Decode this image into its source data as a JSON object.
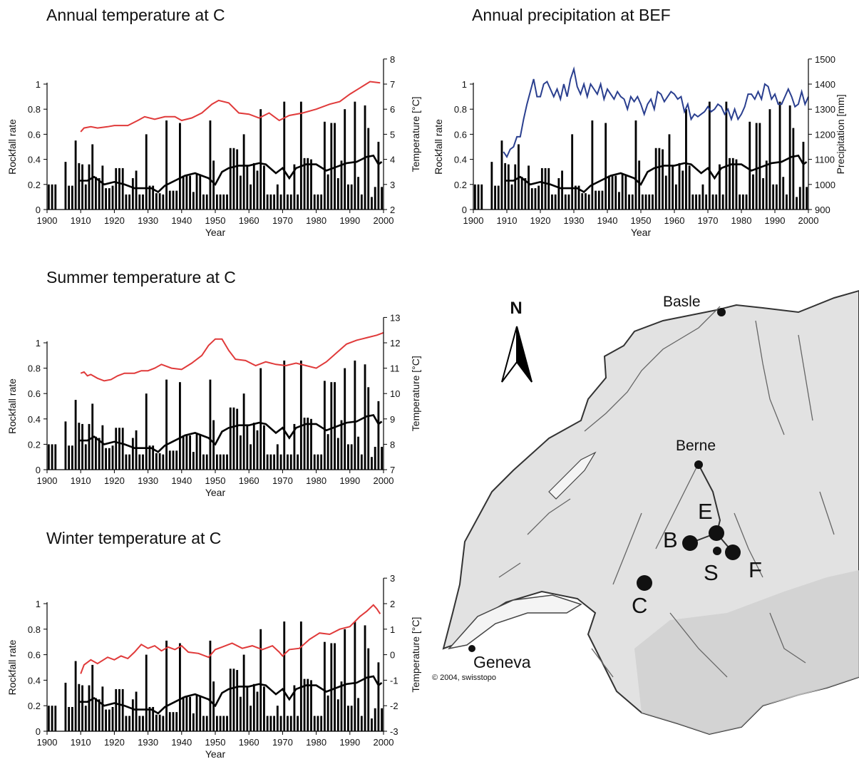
{
  "colors": {
    "bars": "#000000",
    "rockfall_smooth": "#000000",
    "temperature_line": "#e03a3a",
    "precipitation_line": "#2a3f8f",
    "map_land": "#e2e2e2",
    "map_rivers": "#6a6a6a"
  },
  "rockfall": {
    "years": [
      1900,
      1901,
      1902,
      1903,
      1904,
      1905,
      1906,
      1907,
      1908,
      1909,
      1910,
      1911,
      1912,
      1913,
      1914,
      1915,
      1916,
      1917,
      1918,
      1919,
      1920,
      1921,
      1922,
      1923,
      1924,
      1925,
      1926,
      1927,
      1928,
      1929,
      1930,
      1931,
      1932,
      1933,
      1934,
      1935,
      1936,
      1937,
      1938,
      1939,
      1940,
      1941,
      1942,
      1943,
      1944,
      1945,
      1946,
      1947,
      1948,
      1949,
      1950,
      1951,
      1952,
      1953,
      1954,
      1955,
      1956,
      1957,
      1958,
      1959,
      1960,
      1961,
      1962,
      1963,
      1964,
      1965,
      1966,
      1967,
      1968,
      1969,
      1970,
      1971,
      1972,
      1973,
      1974,
      1975,
      1976,
      1977,
      1978,
      1979,
      1980,
      1981,
      1982,
      1983,
      1984,
      1985,
      1986,
      1987,
      1988,
      1989,
      1990,
      1991,
      1992,
      1993,
      1994,
      1995,
      1996,
      1997,
      1998,
      1999
    ],
    "rates": [
      0.2,
      0.2,
      0.2,
      0,
      0,
      0.38,
      0.19,
      0.19,
      0.55,
      0.37,
      0.36,
      0.2,
      0.36,
      0.52,
      0.26,
      0.25,
      0.35,
      0.17,
      0.17,
      0.19,
      0.33,
      0.33,
      0.33,
      0.12,
      0.12,
      0.25,
      0.31,
      0.12,
      0.12,
      0.6,
      0.19,
      0.19,
      0.13,
      0.13,
      0.12,
      0.71,
      0.15,
      0.15,
      0.15,
      0.69,
      0.27,
      0.27,
      0.27,
      0.14,
      0.28,
      0.28,
      0.12,
      0.12,
      0.71,
      0.39,
      0.12,
      0.12,
      0.12,
      0.12,
      0.49,
      0.49,
      0.48,
      0.27,
      0.6,
      0.35,
      0.2,
      0.37,
      0.31,
      0.8,
      0.35,
      0.12,
      0.12,
      0.12,
      0.2,
      0.12,
      0.86,
      0.12,
      0.12,
      0.36,
      0.12,
      0.86,
      0.41,
      0.41,
      0.4,
      0.12,
      0.12,
      0.12,
      0.7,
      0.28,
      0.69,
      0.69,
      0.25,
      0.39,
      0.8,
      0.2,
      0.2,
      0.86,
      0.26,
      0.12,
      0.83,
      0.65,
      0.1,
      0.18,
      0.54,
      0.18
    ],
    "smooth_x": [
      1909.5,
      1912,
      1914,
      1917,
      1920,
      1923,
      1926,
      1929,
      1931,
      1933,
      1935,
      1938,
      1941,
      1944,
      1946,
      1948,
      1950,
      1952,
      1954,
      1957,
      1960,
      1963,
      1965,
      1968,
      1970,
      1972,
      1974,
      1977,
      1980,
      1983,
      1986,
      1989,
      1992,
      1995,
      1997,
      1998.5,
      1999.5
    ],
    "smooth_y": [
      0.23,
      0.23,
      0.26,
      0.2,
      0.22,
      0.2,
      0.17,
      0.17,
      0.17,
      0.14,
      0.19,
      0.23,
      0.27,
      0.29,
      0.27,
      0.25,
      0.2,
      0.3,
      0.33,
      0.35,
      0.35,
      0.37,
      0.36,
      0.29,
      0.33,
      0.25,
      0.33,
      0.36,
      0.36,
      0.31,
      0.34,
      0.37,
      0.38,
      0.42,
      0.43,
      0.36,
      0.38
    ]
  },
  "chart_data": [
    {
      "type": "bar+line",
      "title": "Annual temperature at C",
      "xlabel": "Year",
      "xlim": [
        1900,
        2000
      ],
      "ylabel_left": "Rockfall rate",
      "ylim_left": [
        0,
        1
      ],
      "ylabel_right": "Temperature [°C]",
      "ylim_right": [
        2,
        8
      ],
      "x_ticks": [
        1900,
        1910,
        1920,
        1930,
        1940,
        1950,
        1960,
        1970,
        1980,
        1990,
        2000
      ],
      "left_ticks": [
        "0",
        "0.2",
        "0.4",
        "0.6",
        "0.8",
        "1"
      ],
      "right_ticks": [
        "2",
        "3",
        "4",
        "5",
        "6",
        "7",
        "8"
      ],
      "line": {
        "x": [
          1910,
          1911,
          1913,
          1915,
          1918,
          1920,
          1924,
          1927,
          1929,
          1932,
          1935,
          1938,
          1940,
          1943,
          1946,
          1949,
          1951,
          1954,
          1957,
          1960,
          1963,
          1966,
          1969,
          1972,
          1976,
          1980,
          1984,
          1987,
          1990,
          1993,
          1996,
          1999
        ],
        "y": [
          5.1,
          5.25,
          5.3,
          5.25,
          5.3,
          5.35,
          5.35,
          5.55,
          5.7,
          5.6,
          5.7,
          5.7,
          5.55,
          5.65,
          5.85,
          6.2,
          6.35,
          6.25,
          5.85,
          5.8,
          5.65,
          5.85,
          5.55,
          5.75,
          5.85,
          6.0,
          6.2,
          6.3,
          6.6,
          6.85,
          7.1,
          7.05
        ]
      }
    },
    {
      "type": "bar+line",
      "title": "Annual precipitation at BEF",
      "xlabel": "Year",
      "xlim": [
        1900,
        2000
      ],
      "ylabel_left": "Rockfall rate",
      "ylim_left": [
        0,
        1
      ],
      "ylabel_right": "Precipitation [mm]",
      "ylim_right": [
        900,
        1500
      ],
      "x_ticks": [
        1900,
        1910,
        1920,
        1930,
        1940,
        1950,
        1960,
        1970,
        1980,
        1990,
        2000
      ],
      "left_ticks": [
        "0",
        "0.2",
        "0.4",
        "0.6",
        "0.8",
        "1"
      ],
      "right_ticks": [
        "900",
        "1000",
        "1100",
        "1200",
        "1300",
        "1400",
        "1500"
      ],
      "line": {
        "x": [
          1909,
          1910,
          1911,
          1912,
          1913,
          1914,
          1915,
          1916,
          1917,
          1918,
          1919,
          1920,
          1921,
          1922,
          1923,
          1924,
          1925,
          1926,
          1927,
          1928,
          1929,
          1930,
          1931,
          1932,
          1933,
          1934,
          1935,
          1936,
          1937,
          1938,
          1939,
          1940,
          1941,
          1942,
          1943,
          1944,
          1945,
          1946,
          1947,
          1948,
          1949,
          1950,
          1951,
          1952,
          1953,
          1954,
          1955,
          1956,
          1957,
          1958,
          1959,
          1960,
          1961,
          1962,
          1963,
          1964,
          1965,
          1966,
          1967,
          1968,
          1969,
          1970,
          1971,
          1972,
          1973,
          1974,
          1975,
          1976,
          1977,
          1978,
          1979,
          1980,
          1981,
          1982,
          1983,
          1984,
          1985,
          1986,
          1987,
          1988,
          1989,
          1990,
          1991,
          1992,
          1993,
          1994,
          1995,
          1996,
          1997,
          1998,
          1999,
          2000
        ],
        "y": [
          1130,
          1110,
          1140,
          1150,
          1190,
          1190,
          1260,
          1320,
          1370,
          1420,
          1350,
          1350,
          1400,
          1410,
          1380,
          1350,
          1380,
          1340,
          1400,
          1350,
          1420,
          1460,
          1390,
          1360,
          1400,
          1350,
          1400,
          1380,
          1360,
          1400,
          1340,
          1380,
          1360,
          1340,
          1370,
          1350,
          1340,
          1300,
          1350,
          1330,
          1350,
          1320,
          1280,
          1320,
          1340,
          1300,
          1370,
          1360,
          1330,
          1350,
          1370,
          1360,
          1340,
          1350,
          1290,
          1320,
          1260,
          1280,
          1270,
          1280,
          1290,
          1310,
          1290,
          1300,
          1320,
          1310,
          1280,
          1300,
          1260,
          1300,
          1260,
          1280,
          1310,
          1360,
          1360,
          1340,
          1370,
          1340,
          1400,
          1390,
          1340,
          1360,
          1320,
          1320,
          1350,
          1380,
          1350,
          1310,
          1320,
          1370,
          1320,
          1350
        ]
      }
    },
    {
      "type": "bar+line",
      "title": "Summer temperature at C",
      "xlabel": "Year",
      "xlim": [
        1900,
        2000
      ],
      "ylabel_left": "Rockfall rate",
      "ylim_left": [
        0,
        1
      ],
      "ylabel_right": "Temperature [°C]",
      "ylim_right": [
        7,
        13
      ],
      "x_ticks": [
        1900,
        1910,
        1920,
        1930,
        1940,
        1950,
        1960,
        1970,
        1980,
        1990,
        2000
      ],
      "left_ticks": [
        "0",
        "0.2",
        "0.4",
        "0.6",
        "0.8",
        "1"
      ],
      "right_ticks": [
        "7",
        "8",
        "9",
        "10",
        "11",
        "12",
        "13"
      ],
      "line": {
        "x": [
          1910,
          1911,
          1912,
          1913,
          1915,
          1917,
          1919,
          1921,
          1923,
          1926,
          1928,
          1930,
          1932,
          1934,
          1937,
          1940,
          1943,
          1946,
          1948,
          1950,
          1952,
          1954,
          1956,
          1959,
          1962,
          1965,
          1968,
          1971,
          1974,
          1977,
          1980,
          1983,
          1986,
          1989,
          1992,
          1995,
          1998,
          2000
        ],
        "y": [
          10.8,
          10.85,
          10.7,
          10.75,
          10.6,
          10.5,
          10.55,
          10.7,
          10.8,
          10.8,
          10.9,
          10.9,
          11.0,
          11.15,
          11.0,
          10.95,
          11.2,
          11.5,
          11.9,
          12.15,
          12.15,
          11.7,
          11.35,
          11.3,
          11.1,
          11.25,
          11.15,
          11.1,
          11.2,
          11.1,
          11.0,
          11.25,
          11.6,
          11.95,
          12.1,
          12.2,
          12.3,
          12.4
        ]
      }
    },
    {
      "type": "bar+line",
      "title": "Winter temperature at C",
      "xlabel": "Year",
      "xlim": [
        1900,
        2000
      ],
      "ylabel_left": "Rockfall rate",
      "ylim_left": [
        0,
        1
      ],
      "ylabel_right": "Temperature [°C]",
      "ylim_right": [
        -3,
        3
      ],
      "x_ticks": [
        1900,
        1910,
        1920,
        1930,
        1940,
        1950,
        1960,
        1970,
        1980,
        1990,
        2000
      ],
      "left_ticks": [
        "0",
        "0.2",
        "0.4",
        "0.6",
        "0.8",
        "1"
      ],
      "right_ticks": [
        "-3",
        "-2",
        "-1",
        "0",
        "1",
        "2",
        "3"
      ],
      "line": {
        "x": [
          1910,
          1911,
          1913,
          1915,
          1918,
          1920,
          1922,
          1924,
          1926,
          1928,
          1930,
          1932,
          1934,
          1936,
          1938,
          1940,
          1942,
          1945,
          1948,
          1950,
          1952,
          1955,
          1958,
          1961,
          1964,
          1967,
          1969,
          1970,
          1972,
          1975,
          1978,
          1981,
          1984,
          1987,
          1990,
          1993,
          1995,
          1997,
          1998,
          1999
        ],
        "y": [
          -0.75,
          -0.4,
          -0.2,
          -0.35,
          -0.1,
          -0.2,
          -0.05,
          -0.15,
          0.1,
          0.4,
          0.25,
          0.35,
          0.15,
          0.3,
          0.2,
          0.35,
          0.1,
          0.05,
          -0.1,
          0.2,
          0.3,
          0.45,
          0.25,
          0.35,
          0.2,
          0.35,
          0.1,
          -0.05,
          0.2,
          0.25,
          0.6,
          0.85,
          0.8,
          1.0,
          1.1,
          1.5,
          1.7,
          1.95,
          1.8,
          1.6
        ]
      }
    }
  ],
  "map": {
    "north_label": "N",
    "cities": {
      "basle": "Basle",
      "berne": "Berne",
      "geneva": "Geneva"
    },
    "sites": {
      "b": "B",
      "c": "C",
      "e": "E",
      "f": "F",
      "s": "S"
    },
    "copyright": "© 2004, swisstopo"
  }
}
